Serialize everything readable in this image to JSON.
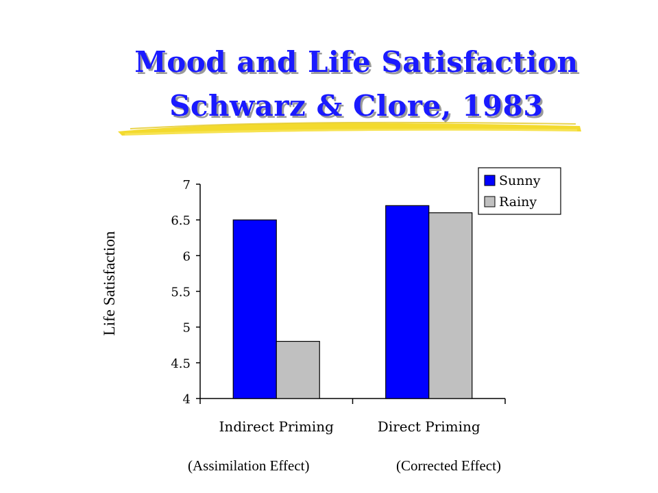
{
  "slide": {
    "title_line1": "Mood and Life Satisfaction",
    "title_line2": "Schwarz & Clore, 1983",
    "title_color": "#1a1aff",
    "underline_color": "#f2d617"
  },
  "annotations": [
    "(Assimilation Effect)",
    "(Corrected Effect)"
  ],
  "chart_data": {
    "type": "bar",
    "categories": [
      "Indirect Priming",
      "Direct Priming"
    ],
    "series": [
      {
        "name": "Sunny",
        "values": [
          6.5,
          6.7
        ],
        "color": "#0000ff"
      },
      {
        "name": "Rainy",
        "values": [
          4.8,
          6.6
        ],
        "color": "#c0c0c0"
      }
    ],
    "ylabel": "Life Satisfaction",
    "ylim": [
      4,
      7
    ],
    "yticks": [
      "4",
      "4.5",
      "5",
      "5.5",
      "6",
      "6.5",
      "7"
    ],
    "grid": false,
    "legend_position": "top-right"
  }
}
